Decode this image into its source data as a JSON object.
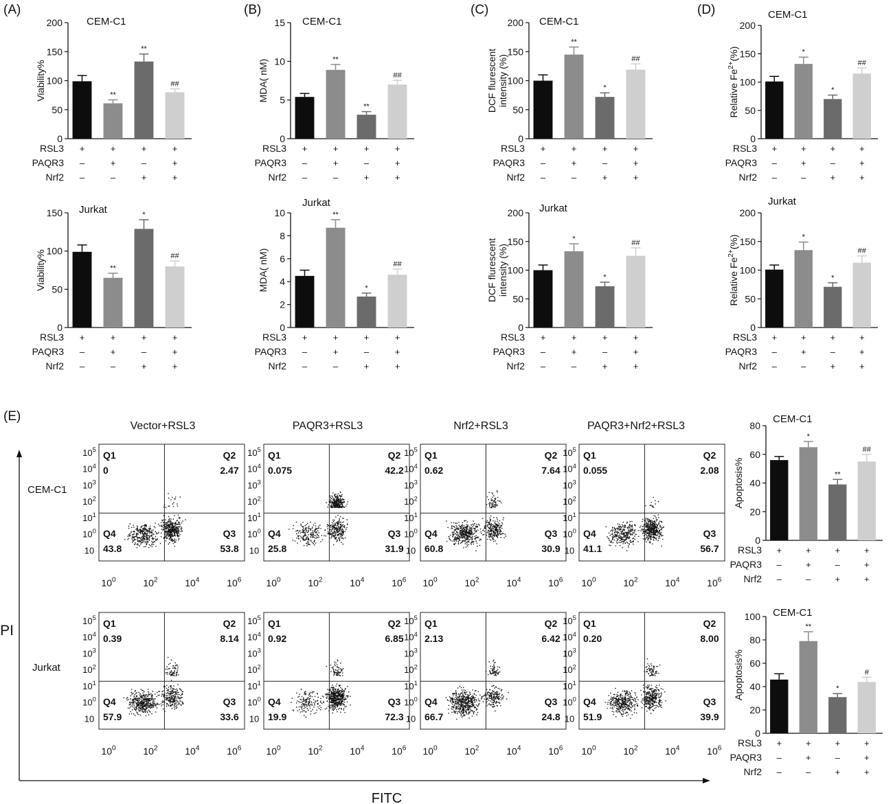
{
  "figure": {
    "treatments": [
      "RSL3",
      "PAQR3",
      "Nrf2"
    ],
    "bar_colors": [
      "#0d0d0d",
      "#8c8c8c",
      "#6b6b6b",
      "#cfcfcf"
    ],
    "treatment_signs": [
      [
        "+",
        "+",
        "+",
        "+"
      ],
      [
        "–",
        "+",
        "–",
        "+"
      ],
      [
        "–",
        "–",
        "+",
        "+"
      ]
    ],
    "panel_e": {
      "letter": "(E)",
      "columns": [
        "Vector+RSL3",
        "PAQR3+RSL3",
        "Nrf2+RSL3",
        "PAQR3+Nrf2+RSL3"
      ],
      "rows": [
        "CEM-C1",
        "Jurkat"
      ],
      "y_axis": "PI",
      "x_axis": "FITC",
      "quadrant_names": [
        "Q1",
        "Q2",
        "Q3",
        "Q4"
      ]
    }
  },
  "chart_data": [
    {
      "id": "A1",
      "panel": "(A)",
      "type": "bar",
      "cell_line": "CEM-C1",
      "ylabel": "Viability%",
      "ylim": [
        0,
        200
      ],
      "yticks": [
        "0",
        "50",
        "100",
        "150",
        "200"
      ],
      "values": [
        99,
        61,
        133,
        80
      ],
      "errors": [
        10,
        6,
        13,
        6
      ],
      "marks": [
        "",
        "**",
        "**",
        "##"
      ]
    },
    {
      "id": "A2",
      "type": "bar",
      "cell_line": "Jurkat",
      "ylabel": "Viability%",
      "ylim": [
        0,
        150
      ],
      "yticks": [
        "0",
        "50",
        "100",
        "150"
      ],
      "values": [
        99,
        65,
        129,
        80
      ],
      "errors": [
        9,
        6,
        12,
        7
      ],
      "marks": [
        "",
        "**",
        "*",
        "##"
      ]
    },
    {
      "id": "B1",
      "panel": "(B)",
      "type": "bar",
      "cell_line": "CEM-C1",
      "ylabel": "MDA( nM)",
      "ylim": [
        0,
        15
      ],
      "yticks": [
        "0",
        "5",
        "10",
        "15"
      ],
      "values": [
        5.4,
        8.9,
        3.1,
        7.0
      ],
      "errors": [
        0.45,
        0.7,
        0.4,
        0.55
      ],
      "marks": [
        "",
        "**",
        "**",
        "##"
      ]
    },
    {
      "id": "B2",
      "type": "bar",
      "cell_line": "Jurkat",
      "ylabel": "MDA( nM)",
      "ylim": [
        0,
        10
      ],
      "yticks": [
        "0",
        "2",
        "4",
        "6",
        "8",
        "10"
      ],
      "values": [
        4.5,
        8.7,
        2.7,
        4.6
      ],
      "errors": [
        0.5,
        0.7,
        0.3,
        0.5
      ],
      "marks": [
        "",
        "**",
        "*",
        "##"
      ]
    },
    {
      "id": "C1",
      "panel": "(C)",
      "type": "bar",
      "cell_line": "CEM-C1",
      "ylabel": "DCF flurescent intensity (%)",
      "ylim": [
        0,
        200
      ],
      "yticks": [
        "0",
        "50",
        "100",
        "150",
        "200"
      ],
      "values": [
        100,
        145,
        72,
        119
      ],
      "errors": [
        10,
        13,
        7,
        10
      ],
      "marks": [
        "",
        "**",
        "*",
        "##"
      ]
    },
    {
      "id": "C2",
      "type": "bar",
      "cell_line": "Jurkat",
      "ylabel": "DCF flurescent intensity (%)",
      "ylim": [
        0,
        200
      ],
      "yticks": [
        "0",
        "50",
        "100",
        "150",
        "200"
      ],
      "values": [
        100,
        133,
        72,
        125
      ],
      "errors": [
        9,
        13,
        7,
        14
      ],
      "marks": [
        "",
        "*",
        "*",
        "##"
      ]
    },
    {
      "id": "D1",
      "panel": "(D)",
      "type": "bar",
      "cell_line": "CEM-C1",
      "ylabel": "Relative Fe2+(%)",
      "ylim": [
        0,
        200
      ],
      "yticks": [
        "0",
        "50",
        "100",
        "150",
        "200"
      ],
      "values": [
        101,
        132,
        70,
        115
      ],
      "errors": [
        9,
        12,
        7,
        10
      ],
      "marks": [
        "",
        "*",
        "*",
        "##"
      ]
    },
    {
      "id": "D2",
      "type": "bar",
      "cell_line": "Jurkat",
      "ylabel": "Relative Fe2+(%)",
      "ylim": [
        0,
        200
      ],
      "yticks": [
        "0",
        "50",
        "100",
        "150",
        "200"
      ],
      "values": [
        101,
        135,
        71,
        113
      ],
      "errors": [
        8,
        14,
        7,
        12
      ],
      "marks": [
        "",
        "*",
        "*",
        "##"
      ]
    },
    {
      "id": "E1",
      "type": "bar",
      "cell_line": "CEM-C1",
      "ylabel": "Apoptosis%",
      "ylim": [
        0,
        80
      ],
      "yticks": [
        "0",
        "20",
        "40",
        "60",
        "80"
      ],
      "values": [
        56,
        65,
        39,
        55
      ],
      "errors": [
        2.5,
        4,
        3.5,
        5
      ],
      "marks": [
        "",
        "*",
        "**",
        "##"
      ]
    },
    {
      "id": "E2",
      "type": "bar",
      "cell_line": "CEM-C1",
      "ylabel": "Apoptosis%",
      "ylim": [
        0,
        100
      ],
      "yticks": [
        "0",
        "20",
        "40",
        "60",
        "80",
        "100"
      ],
      "values": [
        46,
        79,
        31,
        44
      ],
      "errors": [
        5,
        8,
        3,
        4
      ],
      "marks": [
        "",
        "**",
        "*",
        "#"
      ]
    },
    {
      "id": "F",
      "type": "scatter",
      "kind": "flow-cytometry",
      "x_label": "FITC",
      "y_label": "PI",
      "axis_ticks": [
        "10^0",
        "10^2",
        "10^4",
        "10^6"
      ],
      "y_ticks": [
        "10^5",
        "10^4",
        "10^3",
        "10^2",
        "10^1",
        "10^0",
        "10"
      ],
      "rows": [
        {
          "cell_line": "CEM-C1",
          "quadrants": [
            {
              "Q1": "0",
              "Q2": "2.47",
              "Q3": "53.8",
              "Q4": "43.8"
            },
            {
              "Q1": "0.075",
              "Q2": "42.2",
              "Q3": "31.9",
              "Q4": "25.8"
            },
            {
              "Q1": "0.62",
              "Q2": "7.64",
              "Q3": "30.9",
              "Q4": "60.8"
            },
            {
              "Q1": "0.055",
              "Q2": "2.08",
              "Q3": "56.7",
              "Q4": "41.1"
            }
          ]
        },
        {
          "cell_line": "Jurkat",
          "quadrants": [
            {
              "Q1": "0.39",
              "Q2": "8.14",
              "Q3": "33.6",
              "Q4": "57.9"
            },
            {
              "Q1": "0.92",
              "Q2": "6.85",
              "Q3": "72.3",
              "Q4": "19.9"
            },
            {
              "Q1": "2.13",
              "Q2": "6.42",
              "Q3": "24.8",
              "Q4": "66.7"
            },
            {
              "Q1": "0.20",
              "Q2": "8.00",
              "Q3": "39.9",
              "Q4": "51.9"
            }
          ]
        }
      ]
    }
  ]
}
